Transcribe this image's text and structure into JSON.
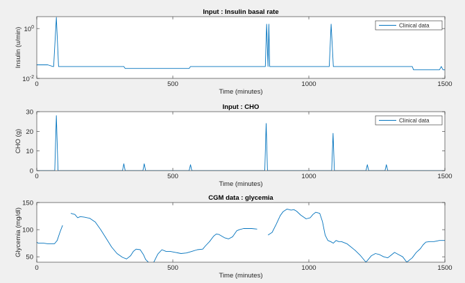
{
  "colors": {
    "line": "#0072BD",
    "axes_bg": "#ffffff",
    "figure_bg": "#f0f0f0",
    "axis": "#262626"
  },
  "chart_data": [
    {
      "type": "line",
      "title": "Input : Insulin basal rate",
      "xlabel": "Time (minutes)",
      "ylabel": "Insulin (u/min)",
      "xlim": [
        0,
        1500
      ],
      "ylim": [
        0.01,
        3
      ],
      "yscale": "log",
      "xticks": [
        {
          "value": 0,
          "label": "0"
        },
        {
          "value": 500,
          "label": "500"
        },
        {
          "value": 1000,
          "label": "1000"
        },
        {
          "value": 1500,
          "label": "1500"
        }
      ],
      "yticks": [
        {
          "value": 0.01,
          "base": "10",
          "exp": "-2"
        },
        {
          "value": 1,
          "base": "10",
          "exp": "0"
        }
      ],
      "legend": {
        "position": "top-right",
        "entries": [
          "Clinical data"
        ]
      },
      "series": [
        {
          "name": "Clinical data",
          "x": [
            0,
            40,
            60,
            62,
            72,
            80,
            82,
            200,
            320,
            325,
            560,
            565,
            838,
            840,
            845,
            850,
            853,
            856,
            860,
            868,
            975,
            1070,
            1075,
            1082,
            1090,
            1095,
            1380,
            1385,
            1480,
            1487,
            1493,
            1500
          ],
          "y": [
            0.035,
            0.035,
            0.03,
            0.03,
            2.8,
            0.03,
            0.03,
            0.03,
            0.03,
            0.025,
            0.025,
            0.03,
            0.03,
            0.03,
            1.5,
            0.03,
            1.5,
            0.03,
            0.03,
            0.03,
            0.03,
            0.03,
            0.03,
            1.5,
            0.03,
            0.03,
            0.03,
            0.022,
            0.022,
            0.03,
            0.022,
            0.022
          ]
        }
      ]
    },
    {
      "type": "line",
      "title": "Input : CHO",
      "xlabel": "Time (minutes)",
      "ylabel": "CHO (g)",
      "xlim": [
        0,
        1500
      ],
      "ylim": [
        0,
        30
      ],
      "xticks": [
        {
          "value": 0,
          "label": "0"
        },
        {
          "value": 500,
          "label": "500"
        },
        {
          "value": 1000,
          "label": "1000"
        },
        {
          "value": 1500,
          "label": "1500"
        }
      ],
      "yticks": [
        {
          "value": 0,
          "label": "0"
        },
        {
          "value": 10,
          "label": "10"
        },
        {
          "value": 20,
          "label": "20"
        },
        {
          "value": 30,
          "label": "30"
        }
      ],
      "legend": {
        "position": "top-right",
        "entries": [
          "Clinical data"
        ]
      },
      "series": [
        {
          "name": "Clinical data",
          "x": [
            0,
            66,
            72,
            78,
            300,
            315,
            320,
            325,
            385,
            390,
            395,
            400,
            405,
            555,
            560,
            565,
            570,
            575,
            838,
            843,
            848,
            1084,
            1089,
            1094,
            1210,
            1215,
            1220,
            1280,
            1285,
            1290,
            1500
          ],
          "y": [
            0,
            0,
            28,
            0,
            0,
            0,
            3.5,
            0,
            0,
            0,
            3.5,
            0,
            0,
            0,
            0,
            3,
            0,
            0,
            0,
            24,
            0,
            0,
            19,
            0,
            0,
            3,
            0,
            0,
            3,
            0,
            0
          ]
        }
      ]
    },
    {
      "type": "line",
      "title": "CGM data : glycemia",
      "xlabel": "Time (minutes)",
      "ylabel": "Glycemia (mg/dl)",
      "xlim": [
        0,
        1500
      ],
      "ylim": [
        40,
        150
      ],
      "xticks": [
        {
          "value": 0,
          "label": "0"
        },
        {
          "value": 500,
          "label": "500"
        },
        {
          "value": 1000,
          "label": "1000"
        },
        {
          "value": 1500,
          "label": "1500"
        }
      ],
      "yticks": [
        {
          "value": 50,
          "label": "50"
        },
        {
          "value": 100,
          "label": "100"
        },
        {
          "value": 150,
          "label": "150"
        }
      ],
      "legend": null,
      "series": [
        {
          "name": "",
          "segments": [
            {
              "x": [
                0,
                5,
                25,
                40,
                50,
                65,
                75,
                85,
                95
              ],
              "y": [
                77,
                75,
                75,
                74,
                74,
                74,
                80,
                95,
                108
              ]
            },
            {
              "x": [
                125,
                140,
                150,
                160,
                175,
                195,
                215,
                235,
                255,
                275,
                295,
                315,
                330,
                345,
                355,
                365,
                380,
                392,
                400,
                410
              ],
              "y": [
                130,
                128,
                122,
                124,
                123,
                121,
                114,
                100,
                84,
                68,
                56,
                49,
                46,
                52,
                60,
                64,
                63,
                54,
                45,
                40
              ]
            },
            {
              "x": [
                430,
                445,
                460,
                475,
                490,
                510,
                530,
                550,
                570,
                590,
                610,
                620,
                635,
                650,
                660,
                670,
                690,
                705,
                720,
                735,
                745,
                760,
                790,
                810
              ],
              "y": [
                40,
                55,
                63,
                60,
                60,
                58,
                56,
                57,
                60,
                63,
                64,
                70,
                78,
                88,
                92,
                91,
                85,
                83,
                87,
                98,
                100,
                102,
                102,
                101
              ]
            },
            {
              "x": [
                850,
                865,
                880,
                895,
                905,
                920,
                935,
                945,
                955,
                970,
                990,
                1005,
                1015,
                1025,
                1040,
                1050,
                1060,
                1070,
                1080,
                1090,
                1100,
                1110,
                1120,
                1140,
                1170,
                1190,
                1210,
                1230,
                1245,
                1260,
                1275,
                1290,
                1300,
                1315,
                1330,
                1345,
                1360,
                1380,
                1395,
                1410,
                1420,
                1430,
                1445,
                1460,
                1480,
                1500
              ],
              "y": [
                90,
                95,
                110,
                126,
                133,
                138,
                136,
                137,
                134,
                127,
                120,
                122,
                128,
                132,
                130,
                115,
                90,
                80,
                78,
                75,
                80,
                78,
                78,
                74,
                62,
                52,
                40,
                52,
                56,
                54,
                50,
                48,
                52,
                58,
                54,
                50,
                40,
                48,
                58,
                65,
                72,
                77,
                78,
                78,
                80,
                80
              ]
            }
          ]
        }
      ]
    }
  ]
}
